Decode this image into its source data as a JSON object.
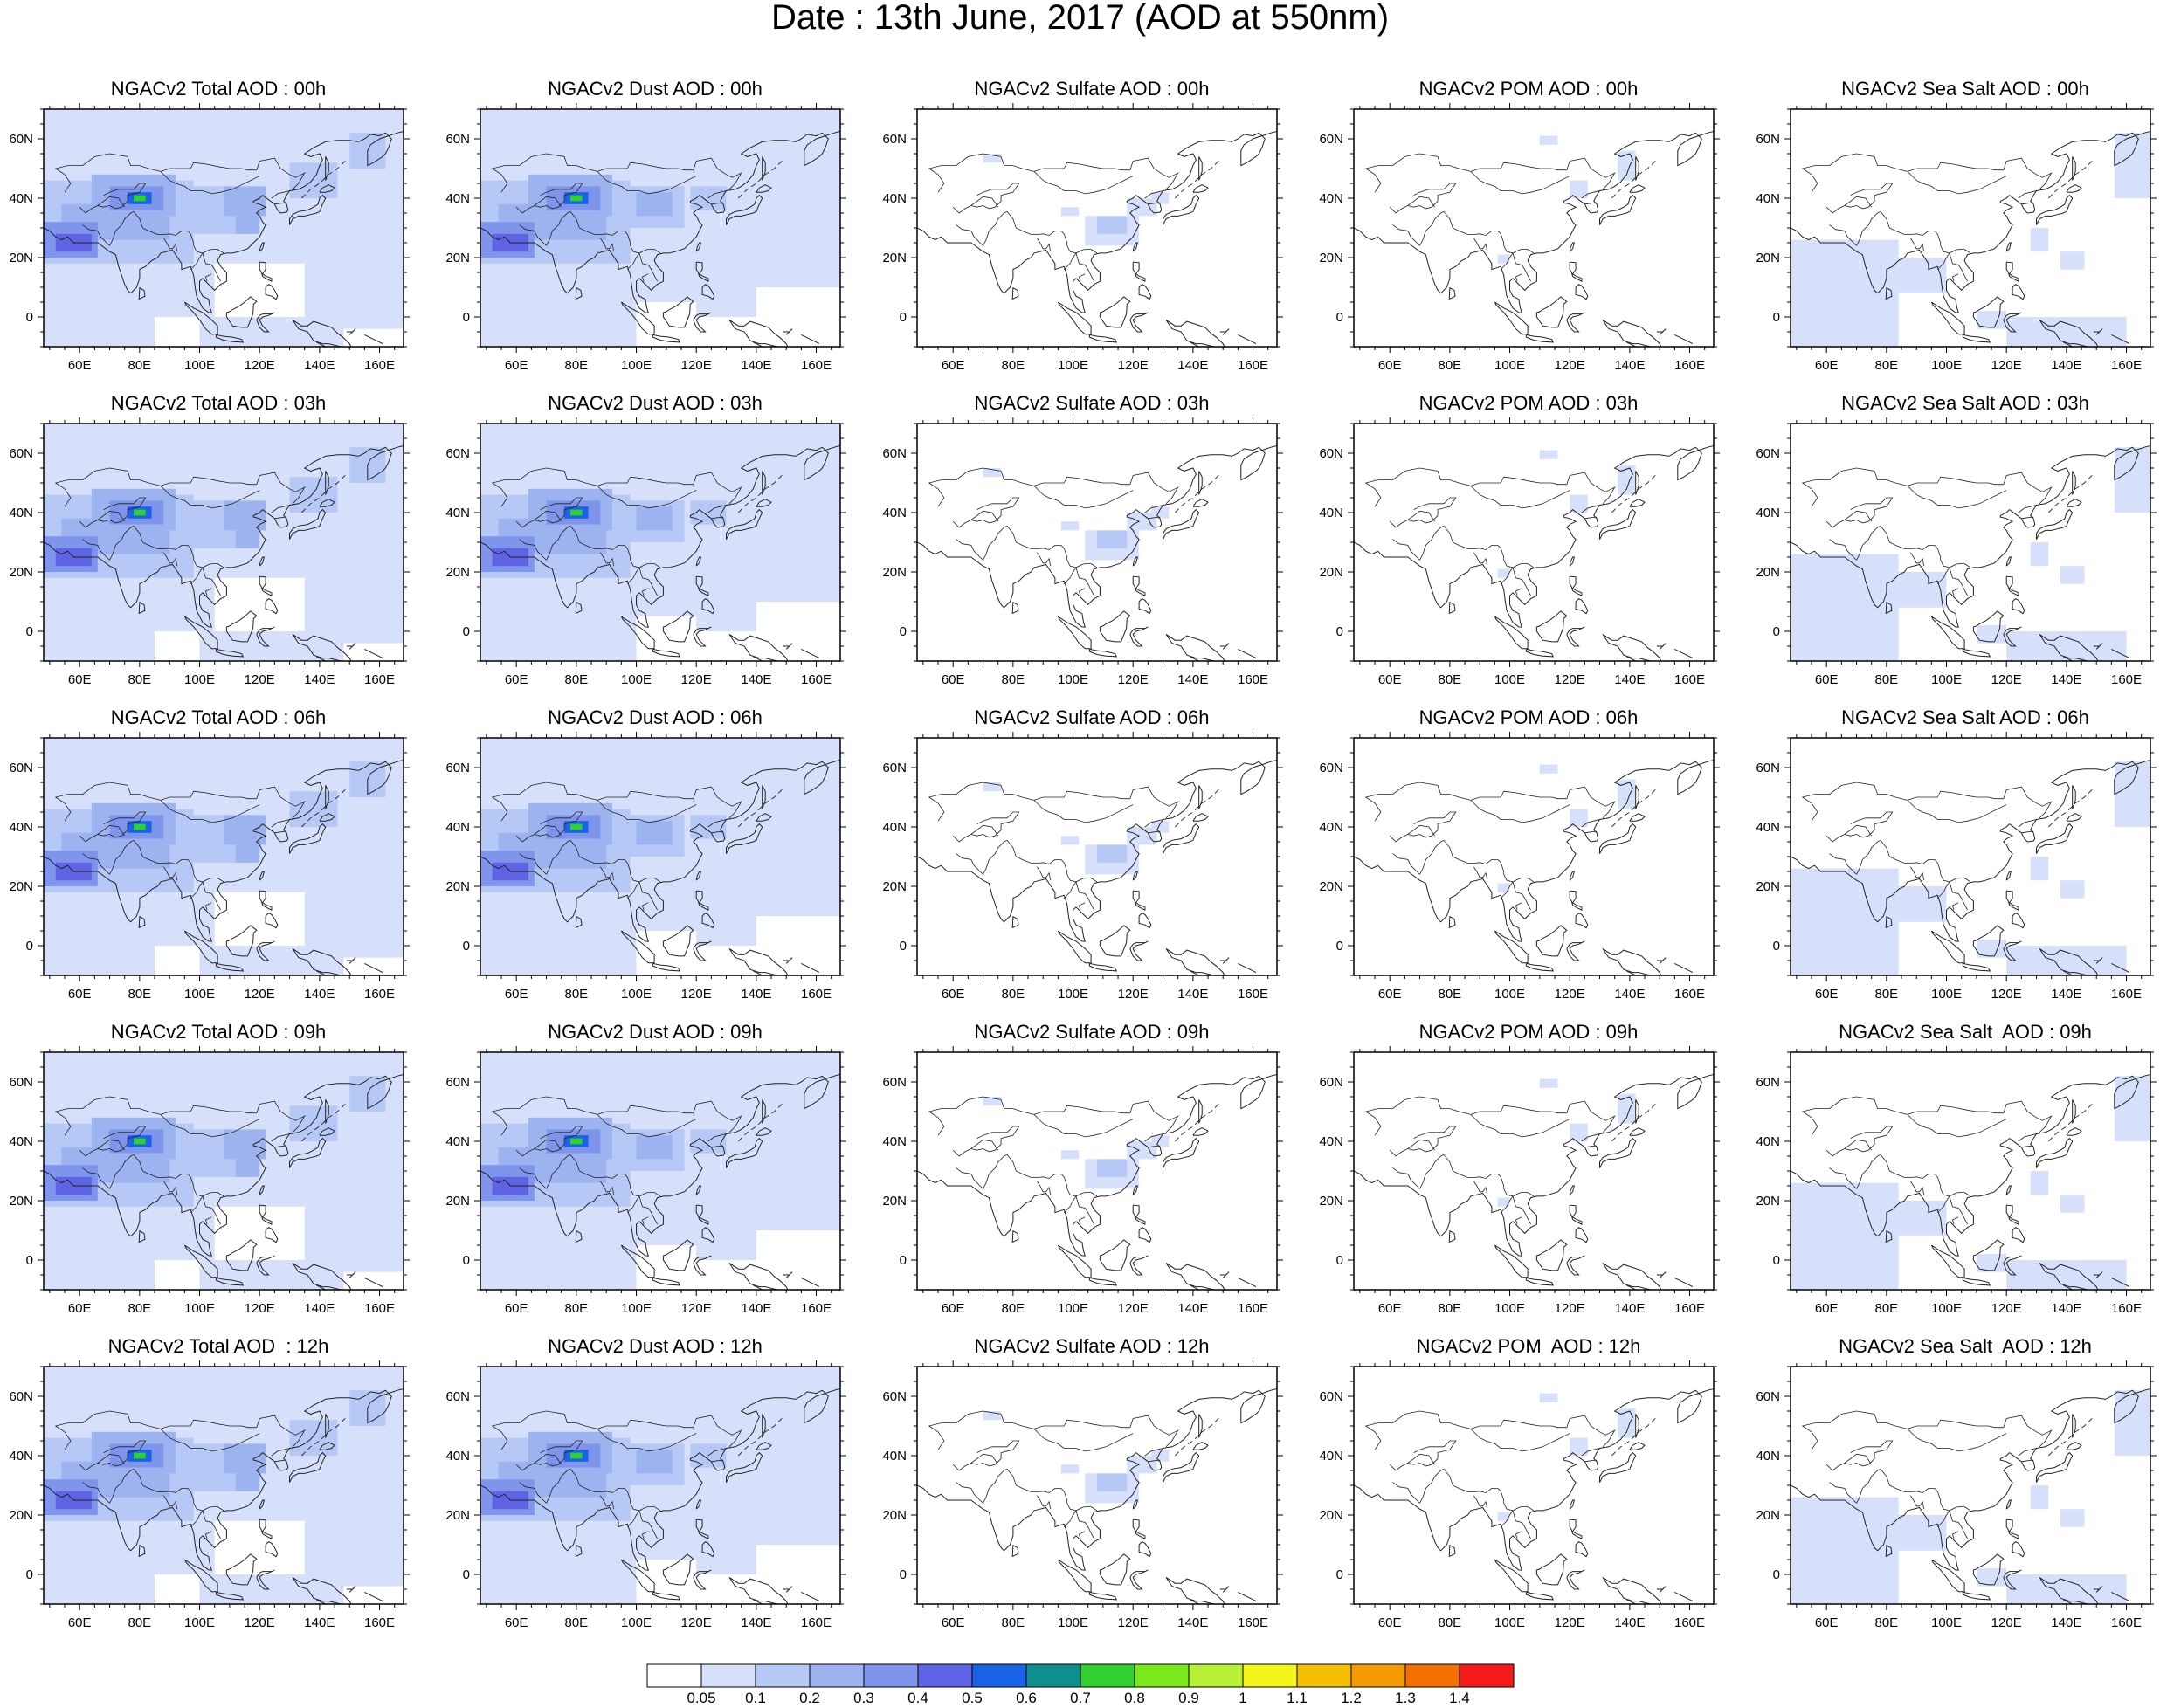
{
  "title": "Date : 13th June, 2017 (AOD at 550nm)",
  "axes": {
    "x_ticks": [
      "60E",
      "80E",
      "100E",
      "120E",
      "140E",
      "160E"
    ],
    "y_ticks": [
      "60N",
      "40N",
      "20N",
      "0"
    ],
    "lon_range": [
      48,
      168
    ],
    "lat_range": [
      -10,
      70
    ]
  },
  "colorbar": {
    "labels": [
      "0.05",
      "0.1",
      "0.2",
      "0.3",
      "0.4",
      "0.5",
      "0.6",
      "0.7",
      "0.8",
      "0.9",
      "1",
      "1.1",
      "1.2",
      "1.3",
      "1.4"
    ],
    "colors": [
      "#ffffff",
      "#d6e0fa",
      "#b6c8f5",
      "#9cb3f0",
      "#7f95ec",
      "#5f64e4",
      "#1a63e8",
      "#0d8f8f",
      "#2fd02f",
      "#7be81a",
      "#b8f033",
      "#f5f51a",
      "#f5c000",
      "#f59a00",
      "#f57000",
      "#f51a1a"
    ]
  },
  "panels": [
    {
      "title": "NGACv2 Total AOD : 00h"
    },
    {
      "title": "NGACv2 Dust AOD : 00h"
    },
    {
      "title": "NGACv2 Sulfate AOD : 00h"
    },
    {
      "title": "NGACv2 POM AOD : 00h"
    },
    {
      "title": "NGACv2 Sea Salt AOD : 00h"
    },
    {
      "title": "NGACv2 Total AOD : 03h"
    },
    {
      "title": "NGACv2 Dust AOD : 03h"
    },
    {
      "title": "NGACv2 Sulfate AOD : 03h"
    },
    {
      "title": "NGACv2 POM AOD : 03h"
    },
    {
      "title": "NGACv2 Sea Salt AOD : 03h"
    },
    {
      "title": "NGACv2 Total AOD : 06h"
    },
    {
      "title": "NGACv2 Dust AOD : 06h"
    },
    {
      "title": "NGACv2 Sulfate AOD : 06h"
    },
    {
      "title": "NGACv2 POM AOD : 06h"
    },
    {
      "title": "NGACv2 Sea Salt AOD : 06h"
    },
    {
      "title": "NGACv2 Total AOD : 09h"
    },
    {
      "title": "NGACv2 Dust AOD : 09h"
    },
    {
      "title": "NGACv2 Sulfate AOD : 09h"
    },
    {
      "title": "NGACv2 POM AOD : 09h"
    },
    {
      "title": "NGACv2 Sea Salt  AOD : 09h"
    },
    {
      "title": "NGACv2 Total AOD  : 12h"
    },
    {
      "title": "NGACv2 Dust AOD : 12h"
    },
    {
      "title": "NGACv2 Sulfate AOD : 12h"
    },
    {
      "title": "NGACv2 POM  AOD : 12h"
    },
    {
      "title": "NGACv2 Sea Salt  AOD : 12h"
    }
  ]
}
